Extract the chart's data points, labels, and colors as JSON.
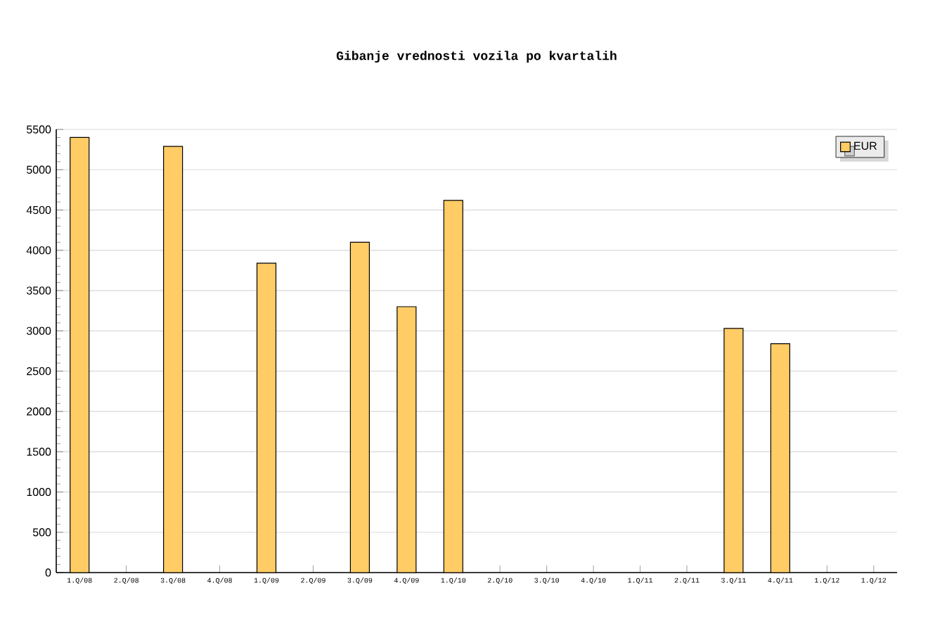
{
  "chart_data": {
    "type": "bar",
    "title": "Gibanje vrednosti vozila po kvartalih",
    "categories": [
      "1.Q/08",
      "2.Q/08",
      "3.Q/08",
      "4.Q/08",
      "1.Q/09",
      "2.Q/09",
      "3.Q/09",
      "4.Q/09",
      "1.Q/10",
      "2.Q/10",
      "3.Q/10",
      "4.Q/10",
      "1.Q/11",
      "2.Q/11",
      "3.Q/11",
      "4.Q/11",
      "1.Q/12",
      "1.Q/12"
    ],
    "series": [
      {
        "name": "EUR",
        "color": "#ffcc66",
        "values": [
          5400,
          null,
          5290,
          null,
          3840,
          null,
          4100,
          3300,
          4620,
          null,
          null,
          null,
          null,
          null,
          3030,
          2840,
          null,
          null
        ]
      }
    ],
    "ylim": [
      0,
      5500
    ],
    "yticks": [
      0,
      500,
      1000,
      1500,
      2000,
      2500,
      3000,
      3500,
      4000,
      4500,
      5000,
      5500
    ],
    "grid": "y",
    "legend": "top right"
  }
}
